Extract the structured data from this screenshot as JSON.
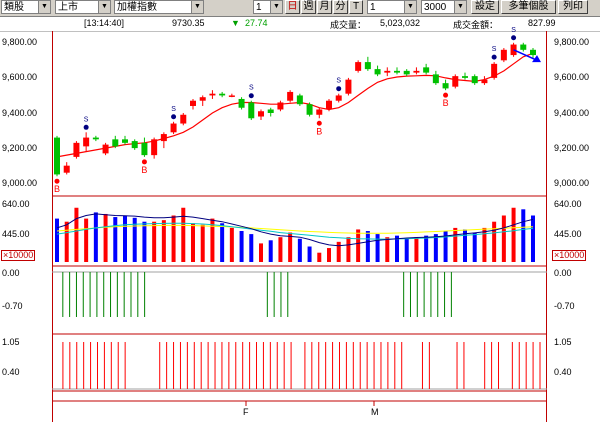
{
  "toolbar": {
    "category": "類股",
    "market": "上市",
    "index": "加權指數",
    "period_value": "1",
    "btn_day": "日",
    "btn_week": "週",
    "btn_month": "月",
    "btn_minute": "分",
    "btn_t": "T",
    "count_value": "1",
    "bars_value": "3000",
    "btn_settings": "設定",
    "btn_multi": "多筆個股",
    "btn_print": "列印"
  },
  "info": {
    "time": "[13:14:40]",
    "price": "9730.35",
    "change_arrow": "▼",
    "change": "27.74",
    "volume_label": "成交量：",
    "volume": "5,023,032",
    "amount_label": "成交金額：",
    "amount": "827.99"
  },
  "price_axis": [
    "9,800.00",
    "9,600.00",
    "9,400.00",
    "9,200.00",
    "9,000.00"
  ],
  "volume_axis": [
    "640.00",
    "445.00"
  ],
  "volume_unit": "×10000",
  "ind1_axis": [
    "0.00",
    "-0.70"
  ],
  "ind2_axis": [
    "1.05",
    "0.40"
  ],
  "x_labels": [
    "F",
    "M"
  ],
  "signal_labels": {
    "sell": "S",
    "buy": "B"
  },
  "colors": {
    "up": "#ff0000",
    "down": "#00c000",
    "vol_up": "#ff0000",
    "vol_down": "#0000ff",
    "ma": "#ff0000",
    "axis": "#c00000"
  },
  "chart_data": {
    "type": "candlestick",
    "candles": [
      {
        "o": 9260,
        "h": 9270,
        "l": 9040,
        "c": 9050
      },
      {
        "o": 9060,
        "h": 9120,
        "l": 9050,
        "c": 9100
      },
      {
        "o": 9150,
        "h": 9240,
        "l": 9140,
        "c": 9230
      },
      {
        "o": 9210,
        "h": 9290,
        "l": 9180,
        "c": 9260
      },
      {
        "o": 9260,
        "h": 9270,
        "l": 9240,
        "c": 9250
      },
      {
        "o": 9170,
        "h": 9230,
        "l": 9160,
        "c": 9220
      },
      {
        "o": 9250,
        "h": 9270,
        "l": 9200,
        "c": 9210
      },
      {
        "o": 9250,
        "h": 9270,
        "l": 9220,
        "c": 9230
      },
      {
        "o": 9240,
        "h": 9250,
        "l": 9190,
        "c": 9200
      },
      {
        "o": 9230,
        "h": 9260,
        "l": 9150,
        "c": 9160
      },
      {
        "o": 9160,
        "h": 9260,
        "l": 9140,
        "c": 9250
      },
      {
        "o": 9240,
        "h": 9290,
        "l": 9200,
        "c": 9280
      },
      {
        "o": 9290,
        "h": 9350,
        "l": 9280,
        "c": 9340
      },
      {
        "o": 9340,
        "h": 9400,
        "l": 9330,
        "c": 9390
      },
      {
        "o": 9440,
        "h": 9480,
        "l": 9420,
        "c": 9470
      },
      {
        "o": 9470,
        "h": 9500,
        "l": 9440,
        "c": 9490
      },
      {
        "o": 9500,
        "h": 9530,
        "l": 9480,
        "c": 9510
      },
      {
        "o": 9510,
        "h": 9520,
        "l": 9490,
        "c": 9500
      },
      {
        "o": 9500,
        "h": 9510,
        "l": 9490,
        "c": 9500
      },
      {
        "o": 9480,
        "h": 9490,
        "l": 9420,
        "c": 9430
      },
      {
        "o": 9460,
        "h": 9470,
        "l": 9360,
        "c": 9370
      },
      {
        "o": 9380,
        "h": 9420,
        "l": 9360,
        "c": 9410
      },
      {
        "o": 9420,
        "h": 9430,
        "l": 9380,
        "c": 9400
      },
      {
        "o": 9420,
        "h": 9470,
        "l": 9410,
        "c": 9460
      },
      {
        "o": 9470,
        "h": 9530,
        "l": 9460,
        "c": 9520
      },
      {
        "o": 9500,
        "h": 9510,
        "l": 9440,
        "c": 9450
      },
      {
        "o": 9450,
        "h": 9460,
        "l": 9380,
        "c": 9390
      },
      {
        "o": 9390,
        "h": 9430,
        "l": 9370,
        "c": 9420
      },
      {
        "o": 9420,
        "h": 9480,
        "l": 9410,
        "c": 9470
      },
      {
        "o": 9470,
        "h": 9510,
        "l": 9460,
        "c": 9500
      },
      {
        "o": 9510,
        "h": 9600,
        "l": 9500,
        "c": 9590
      },
      {
        "o": 9640,
        "h": 9700,
        "l": 9630,
        "c": 9690
      },
      {
        "o": 9690,
        "h": 9720,
        "l": 9640,
        "c": 9650
      },
      {
        "o": 9650,
        "h": 9670,
        "l": 9610,
        "c": 9620
      },
      {
        "o": 9630,
        "h": 9660,
        "l": 9610,
        "c": 9640
      },
      {
        "o": 9640,
        "h": 9660,
        "l": 9620,
        "c": 9630
      },
      {
        "o": 9640,
        "h": 9650,
        "l": 9610,
        "c": 9620
      },
      {
        "o": 9630,
        "h": 9660,
        "l": 9620,
        "c": 9640
      },
      {
        "o": 9660,
        "h": 9680,
        "l": 9620,
        "c": 9630
      },
      {
        "o": 9620,
        "h": 9640,
        "l": 9560,
        "c": 9570
      },
      {
        "o": 9570,
        "h": 9590,
        "l": 9530,
        "c": 9540
      },
      {
        "o": 9550,
        "h": 9620,
        "l": 9540,
        "c": 9610
      },
      {
        "o": 9610,
        "h": 9630,
        "l": 9590,
        "c": 9600
      },
      {
        "o": 9610,
        "h": 9620,
        "l": 9560,
        "c": 9570
      },
      {
        "o": 9570,
        "h": 9610,
        "l": 9560,
        "c": 9590
      },
      {
        "o": 9600,
        "h": 9690,
        "l": 9590,
        "c": 9680
      },
      {
        "o": 9700,
        "h": 9770,
        "l": 9690,
        "c": 9760
      },
      {
        "o": 9730,
        "h": 9800,
        "l": 9720,
        "c": 9790
      },
      {
        "o": 9790,
        "h": 9800,
        "l": 9750,
        "c": 9760
      },
      {
        "o": 9760,
        "h": 9770,
        "l": 9710,
        "c": 9730
      }
    ],
    "ma": [
      9150,
      9160,
      9170,
      9180,
      9190,
      9200,
      9210,
      9220,
      9225,
      9230,
      9240,
      9255,
      9270,
      9290,
      9320,
      9360,
      9400,
      9430,
      9450,
      9460,
      9460,
      9455,
      9450,
      9450,
      9455,
      9460,
      9450,
      9430,
      9420,
      9430,
      9460,
      9500,
      9540,
      9575,
      9595,
      9605,
      9610,
      9612,
      9614,
      9612,
      9600,
      9590,
      9585,
      9580,
      9590,
      9610,
      9640,
      9680,
      9720,
      9740
    ],
    "volume": [
      580,
      560,
      650,
      580,
      620,
      610,
      590,
      600,
      585,
      560,
      560,
      570,
      600,
      650,
      550,
      540,
      580,
      550,
      520,
      500,
      480,
      420,
      440,
      460,
      490,
      450,
      400,
      360,
      390,
      430,
      460,
      510,
      500,
      480,
      460,
      470,
      450,
      460,
      470,
      480,
      500,
      520,
      510,
      490,
      520,
      560,
      600,
      650,
      640,
      600
    ],
    "vol_ma1": [
      520,
      540,
      580,
      600,
      610,
      605,
      600,
      598,
      596,
      590,
      585,
      585,
      590,
      595,
      590,
      580,
      570,
      560,
      545,
      530,
      515,
      495,
      480,
      470,
      465,
      460,
      445,
      425,
      410,
      405,
      410,
      420,
      430,
      440,
      445,
      450,
      455,
      458,
      460,
      463,
      468,
      475,
      482,
      488,
      495,
      505,
      520,
      540,
      560,
      575
    ],
    "vol_ma2": [
      480,
      490,
      500,
      510,
      520,
      528,
      535,
      540,
      544,
      546,
      548,
      549,
      550,
      550,
      548,
      545,
      540,
      535,
      528,
      520,
      512,
      505,
      498,
      490,
      484,
      478,
      472,
      466,
      460,
      456,
      452,
      450,
      449,
      448,
      448,
      449,
      450,
      452,
      455,
      458,
      462,
      467,
      472,
      477,
      482,
      488,
      495,
      502,
      510,
      517
    ],
    "vol_ma3": [
      500,
      505,
      510,
      515,
      520,
      524,
      527,
      530,
      532,
      534,
      535,
      536,
      536,
      536,
      535,
      533,
      531,
      529,
      526,
      523,
      520,
      516,
      512,
      508,
      504,
      500,
      497,
      494,
      491,
      489,
      487,
      486,
      485,
      485,
      486,
      487,
      489,
      491,
      494,
      497,
      500,
      503,
      506,
      509,
      512,
      515,
      518,
      521,
      524,
      527
    ],
    "ind1_bars": [
      0,
      0.7,
      0.7,
      0.7,
      0.7,
      0.7,
      0.7,
      0.7,
      0.7,
      0.7,
      0.7,
      0.7,
      0.7,
      0.7,
      0,
      0,
      0,
      0,
      0,
      0,
      0,
      0,
      0,
      0,
      0,
      0,
      0,
      0,
      0,
      0,
      0,
      0.7,
      0.7,
      0.7,
      0.7,
      0,
      0,
      0,
      0,
      0,
      0,
      0,
      0,
      0,
      0,
      0,
      0,
      0,
      0,
      0,
      0,
      0.7,
      0.7,
      0.7,
      0.7,
      0.7,
      0.7,
      0.7,
      0.7,
      0,
      0,
      0,
      0,
      0,
      0,
      0,
      0,
      0,
      0,
      0,
      0,
      0
    ],
    "ind2_bars": [
      0,
      1.05,
      1.05,
      1.05,
      1.05,
      1.05,
      1.05,
      1.05,
      1.05,
      1.05,
      1.05,
      0,
      0,
      0,
      0,
      1.05,
      1.05,
      1.05,
      1.05,
      1.05,
      1.05,
      1.05,
      1.05,
      1.05,
      1.05,
      1.05,
      1.05,
      1.05,
      1.05,
      1.05,
      1.05,
      1.05,
      1.05,
      1.05,
      1.05,
      0,
      1.05,
      1.05,
      1.05,
      1.05,
      1.05,
      1.05,
      1.05,
      1.05,
      1.05,
      1.05,
      1.05,
      1.05,
      1.05,
      1.05,
      1.05,
      0,
      0,
      1.05,
      1.05,
      0,
      0,
      0,
      1.05,
      1.05,
      0,
      0,
      1.05,
      1.05,
      1.05,
      0,
      1.05,
      1.05,
      1.05,
      1.05,
      1.05
    ],
    "sell_signals": [
      3,
      12,
      20,
      29,
      45,
      47
    ],
    "buy_signals": [
      0,
      9,
      27,
      40
    ],
    "y_range": [
      8950,
      9850
    ],
    "vol_range": [
      300,
      700
    ]
  }
}
